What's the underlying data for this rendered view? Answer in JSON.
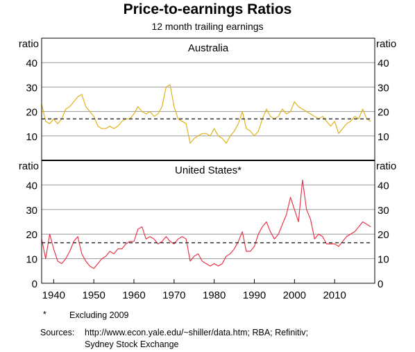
{
  "title": "Price-to-earnings Ratios",
  "subtitle": "12 month trailing earnings",
  "footnote": {
    "marker": "*",
    "text": "Excluding 2009"
  },
  "sources": {
    "label": "Sources:",
    "line1": "http://www.econ.yale.edu/~shiller/data.htm; RBA; Refinitiv;",
    "line2": "Sydney Stock Exchange"
  },
  "colors": {
    "australia": "#e0b21b",
    "us": "#e8364a",
    "average": "#333333",
    "grid": "#9a9a9a"
  },
  "chart_data": [
    {
      "type": "line",
      "panel": "Australia",
      "title": "Australia",
      "ylabel": "ratio",
      "ylim": [
        0,
        50
      ],
      "yticks": [
        10,
        20,
        30,
        40
      ],
      "xlim": [
        1937,
        2020
      ],
      "grid": true,
      "series": [
        {
          "style": "solid",
          "x": [
            1937,
            1938,
            1939,
            1940,
            1941,
            1942,
            1943,
            1944,
            1945,
            1946,
            1947,
            1948,
            1949,
            1950,
            1951,
            1952,
            1953,
            1954,
            1955,
            1956,
            1957,
            1958,
            1959,
            1960,
            1961,
            1962,
            1963,
            1964,
            1965,
            1966,
            1967,
            1968,
            1969,
            1970,
            1971,
            1972,
            1973,
            1974,
            1975,
            1976,
            1977,
            1978,
            1979,
            1980,
            1981,
            1982,
            1983,
            1984,
            1985,
            1986,
            1987,
            1988,
            1989,
            1990,
            1991,
            1992,
            1993,
            1994,
            1995,
            1996,
            1997,
            1998,
            1999,
            2000,
            2001,
            2002,
            2003,
            2004,
            2005,
            2006,
            2007,
            2008,
            2009,
            2010,
            2011,
            2012,
            2013,
            2014,
            2015,
            2016,
            2017,
            2018,
            2019
          ],
          "y": [
            23,
            16,
            15,
            17,
            15,
            17,
            21,
            22,
            24,
            26,
            27,
            22,
            20,
            18,
            14,
            13,
            13,
            14,
            13,
            14,
            16,
            17,
            17,
            19,
            22,
            20,
            19,
            20,
            18,
            19,
            22,
            30,
            31,
            22,
            17,
            16,
            15,
            7,
            9,
            10,
            11,
            11,
            10,
            13,
            10,
            9,
            7,
            10,
            12,
            15,
            20,
            13,
            12,
            10,
            12,
            17,
            21,
            18,
            17,
            18,
            21,
            19,
            20,
            24,
            22,
            21,
            20,
            19,
            18,
            17,
            18,
            16,
            14,
            16,
            11,
            13,
            15,
            16,
            18,
            17,
            21,
            17,
            16
          ]
        },
        {
          "style": "dashed",
          "x": [
            1937,
            2019
          ],
          "y": [
            17,
            17
          ]
        }
      ]
    },
    {
      "type": "line",
      "panel": "United States",
      "title": "United States*",
      "ylabel": "ratio",
      "ylim": [
        0,
        50
      ],
      "yticks": [
        0,
        10,
        20,
        30,
        40
      ],
      "xlim": [
        1937,
        2020
      ],
      "xticks": [
        1940,
        1950,
        1960,
        1970,
        1980,
        1990,
        2000,
        2010
      ],
      "grid": true,
      "series": [
        {
          "style": "solid",
          "x": [
            1937,
            1938,
            1939,
            1940,
            1941,
            1942,
            1943,
            1944,
            1945,
            1946,
            1947,
            1948,
            1949,
            1950,
            1951,
            1952,
            1953,
            1954,
            1955,
            1956,
            1957,
            1958,
            1959,
            1960,
            1961,
            1962,
            1963,
            1964,
            1965,
            1966,
            1967,
            1968,
            1969,
            1970,
            1971,
            1972,
            1973,
            1974,
            1975,
            1976,
            1977,
            1978,
            1979,
            1980,
            1981,
            1982,
            1983,
            1984,
            1985,
            1986,
            1987,
            1988,
            1989,
            1990,
            1991,
            1992,
            1993,
            1994,
            1995,
            1996,
            1997,
            1998,
            1999,
            2000,
            2001,
            2002,
            2003,
            2004,
            2005,
            2006,
            2007,
            2008,
            2010,
            2011,
            2012,
            2013,
            2014,
            2015,
            2016,
            2017,
            2018,
            2019
          ],
          "y": [
            18,
            10,
            20,
            14,
            9,
            8,
            10,
            13,
            17,
            19,
            12,
            9,
            7,
            6,
            8,
            10,
            11,
            13,
            12,
            14,
            14,
            16,
            17,
            17,
            22,
            23,
            18,
            19,
            18,
            16,
            17,
            19,
            17,
            16,
            18,
            19,
            18,
            9,
            11,
            12,
            9,
            8,
            7,
            8,
            7,
            8,
            11,
            12,
            14,
            17,
            21,
            13,
            13,
            15,
            20,
            23,
            25,
            21,
            18,
            20,
            24,
            28,
            35,
            30,
            25,
            42,
            30,
            26,
            18,
            20,
            19,
            16,
            16,
            15,
            17,
            19,
            20,
            21,
            23,
            25,
            24,
            23
          ]
        },
        {
          "style": "dashed",
          "x": [
            1937,
            2019
          ],
          "y": [
            16.5,
            16.5
          ]
        }
      ]
    }
  ]
}
